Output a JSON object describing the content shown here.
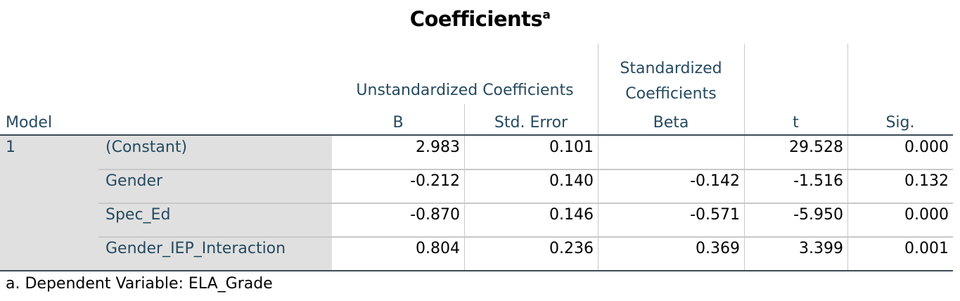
{
  "title": "Coefficients",
  "title_note": "a",
  "header": {
    "model": "Model",
    "group_unstandardized": "Unstandardized Coefficients",
    "group_standardized": "Standardized Coefficients",
    "columns": [
      "B",
      "Std. Error",
      "Beta",
      "t",
      "Sig."
    ]
  },
  "table": {
    "model": "1",
    "rows": [
      [
        "(Constant)",
        "2.983",
        "0.101",
        null,
        "29.528",
        "0.000"
      ],
      [
        "Gender",
        "-0.212",
        "0.140",
        "-0.142",
        "-1.516",
        "0.132"
      ],
      [
        "Spec_Ed",
        "-0.870",
        "0.146",
        "-0.571",
        "-5.950",
        "0.000"
      ],
      [
        "Gender_IEP_Interaction",
        "0.804",
        "0.236",
        "0.369",
        "3.399",
        "0.001"
      ]
    ]
  },
  "footnote": "a. Dependent Variable: ELA_Grade"
}
